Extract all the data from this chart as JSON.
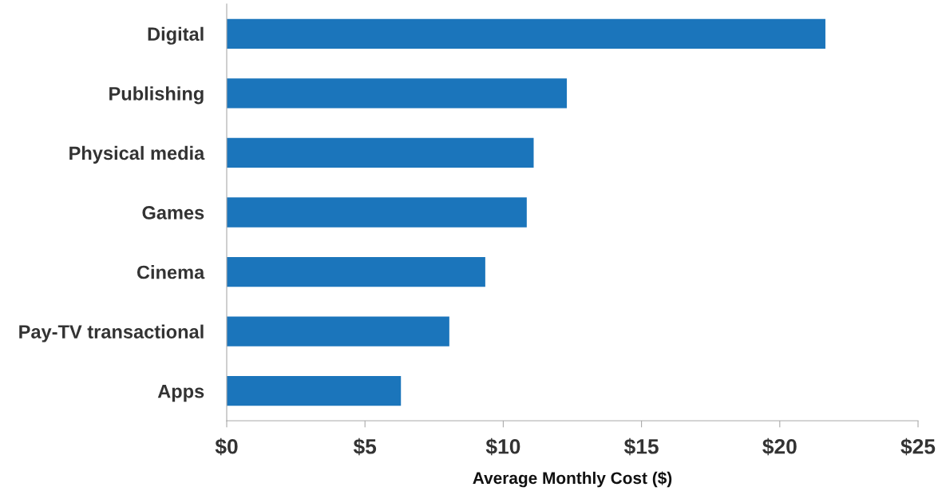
{
  "chart_data": {
    "type": "bar",
    "orientation": "horizontal",
    "xlabel": "Average Monthly Cost ($)",
    "categories": [
      "Digital",
      "Publishing",
      "Physical media",
      "Games",
      "Cinema",
      "Pay-TV transactional",
      "Apps"
    ],
    "values": [
      21.65,
      12.3,
      11.1,
      10.85,
      9.35,
      8.05,
      6.3
    ],
    "color": "#1b75bb",
    "xlim": [
      0,
      25
    ],
    "xticks": [
      {
        "value": 0,
        "label": "$0"
      },
      {
        "value": 5,
        "label": "$5"
      },
      {
        "value": 10,
        "label": "$10"
      },
      {
        "value": 15,
        "label": "$15"
      },
      {
        "value": 20,
        "label": "$20"
      },
      {
        "value": 25,
        "label": "$25"
      }
    ],
    "grid": false,
    "legend": false
  }
}
